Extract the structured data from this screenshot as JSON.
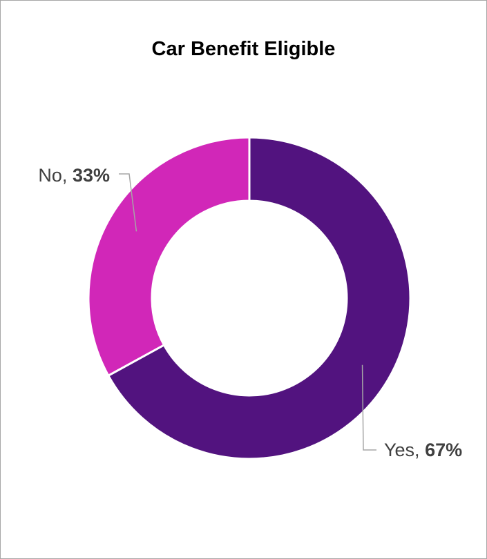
{
  "chart_data": {
    "type": "pie",
    "title": "Car Benefit Eligible",
    "donut": true,
    "categories": [
      "Yes",
      "No"
    ],
    "values": [
      67,
      33
    ],
    "value_labels": [
      "67%",
      "33%"
    ],
    "colors": [
      "#52137f",
      "#d127b8"
    ],
    "legend": "none",
    "data_labels": [
      {
        "category": "Yes",
        "separator": ", ",
        "value": "67%"
      },
      {
        "category": "No",
        "separator": ", ",
        "value": "33%"
      }
    ]
  }
}
